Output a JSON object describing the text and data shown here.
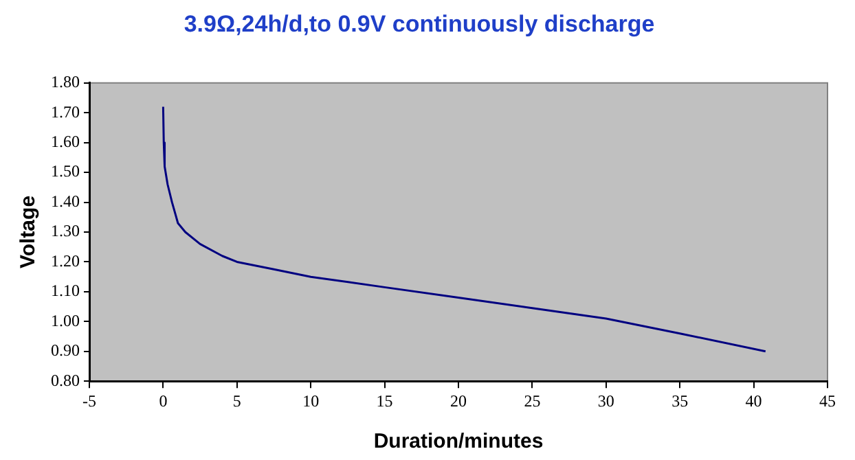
{
  "chart_data": {
    "type": "line",
    "title": "3.9Ω,24h/d,to 0.9V continuously discharge",
    "xlabel": "Duration/minutes",
    "ylabel": "Voltage",
    "series": [
      {
        "color": "#000080",
        "x": [
          0,
          0.04,
          0.1,
          0.3,
          0.6,
          1.0,
          1.5,
          2.5,
          4,
          5,
          7.5,
          10,
          15,
          20,
          25,
          30,
          35,
          40.8
        ],
        "values": [
          1.72,
          1.6,
          1.52,
          1.46,
          1.4,
          1.33,
          1.3,
          1.26,
          1.22,
          1.2,
          1.175,
          1.15,
          1.115,
          1.08,
          1.045,
          1.01,
          0.96,
          0.9
        ]
      }
    ],
    "xlim": [
      -5,
      45
    ],
    "xticks": [
      -5,
      0,
      5,
      10,
      15,
      20,
      25,
      30,
      35,
      40,
      45
    ],
    "ylim": [
      0.8,
      1.8
    ],
    "yticks": [
      {
        "value": 0.8,
        "label": "0.80"
      },
      {
        "value": 0.9,
        "label": "0.90"
      },
      {
        "value": 1.0,
        "label": "1.00"
      },
      {
        "value": 1.1,
        "label": "1.10"
      },
      {
        "value": 1.2,
        "label": "1.20"
      },
      {
        "value": 1.3,
        "label": "1.30"
      },
      {
        "value": 1.4,
        "label": "1.40"
      },
      {
        "value": 1.5,
        "label": "1.50"
      },
      {
        "value": 1.6,
        "label": "1.60"
      },
      {
        "value": 1.7,
        "label": "1.70"
      },
      {
        "value": 1.8,
        "label": "1.80"
      }
    ],
    "grid": false,
    "legend": false,
    "marker": "none"
  }
}
